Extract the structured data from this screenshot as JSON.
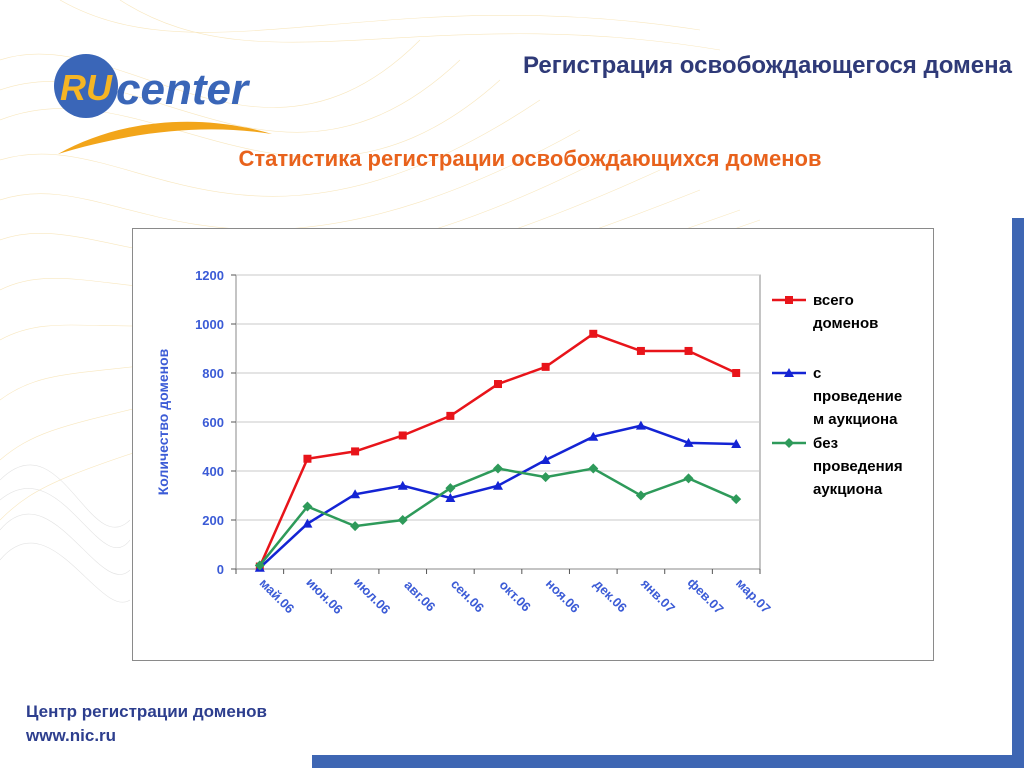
{
  "header": {
    "title": "Регистрация освобождающегося домена",
    "subtitle": "Статистика регистрации освобождающихся доменов"
  },
  "logo": {
    "ru_text": "RU",
    "name_text": "center"
  },
  "footer": {
    "line1": "Центр регистрации доменов",
    "line2": "www.nic.ru"
  },
  "colors": {
    "title": "#2f3a78",
    "subtitle": "#e8621c",
    "accent_bar": "#3e66b3",
    "axis_text": "#3b5bd6",
    "series_total": "#e8141a",
    "series_auction": "#1424d4",
    "series_no_auction": "#2e9a5a"
  },
  "chart_data": {
    "type": "line",
    "categories": [
      "май.06",
      "июн.06",
      "июл.06",
      "авг.06",
      "сен.06",
      "окт.06",
      "ноя.06",
      "дек.06",
      "янв.07",
      "фев.07",
      "мар.07"
    ],
    "ylabel": "Количество доменов",
    "ylim": [
      0,
      1200
    ],
    "yticks": [
      0,
      200,
      400,
      600,
      800,
      1000,
      1200
    ],
    "grid": "horizontal",
    "legend": "right",
    "series": [
      {
        "name_lines": [
          "всего",
          "доменов"
        ],
        "marker": "square",
        "color": "#e8141a",
        "values": [
          10,
          450,
          480,
          545,
          625,
          755,
          825,
          960,
          890,
          890,
          800
        ]
      },
      {
        "name_lines": [
          "с",
          "проведение",
          "м аукциона"
        ],
        "marker": "triangle",
        "color": "#1424d4",
        "values": [
          5,
          185,
          305,
          340,
          290,
          340,
          445,
          540,
          585,
          515,
          510
        ]
      },
      {
        "name_lines": [
          "без",
          "проведения",
          "аукциона"
        ],
        "marker": "diamond",
        "color": "#2e9a5a",
        "values": [
          15,
          255,
          175,
          200,
          330,
          410,
          375,
          410,
          300,
          370,
          285
        ]
      }
    ]
  }
}
